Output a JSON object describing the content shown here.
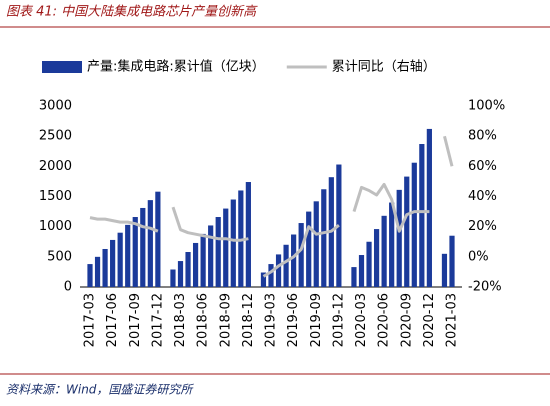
{
  "chart_data": {
    "type": "bar_line",
    "title": "图表 41:  中国大陆集成电路芯片产量创新高",
    "source": "资料来源：Wind，国盛证券研究所",
    "categories": [
      "2017-03",
      null,
      null,
      "2017-06",
      null,
      null,
      "2017-09",
      null,
      null,
      "2017-12",
      null,
      null,
      "2018-03",
      null,
      null,
      "2018-06",
      null,
      null,
      "2018-09",
      null,
      null,
      "2018-12",
      null,
      null,
      "2019-03",
      null,
      null,
      "2019-06",
      null,
      null,
      "2019-09",
      null,
      null,
      "2019-12",
      null,
      null,
      "2020-03",
      null,
      null,
      "2020-06",
      null,
      null,
      "2020-09",
      null,
      null,
      "2020-12",
      null,
      null,
      "2021-03"
    ],
    "series": [
      {
        "name": "产量:集成电路:累计值（亿块）",
        "type": "bar",
        "color": "#1b3a9a",
        "values": [
          380,
          500,
          630,
          780,
          900,
          1030,
          1160,
          1310,
          1440,
          1580,
          null,
          290,
          430,
          580,
          730,
          880,
          1020,
          1160,
          1300,
          1450,
          1600,
          1740,
          null,
          240,
          380,
          540,
          700,
          870,
          1060,
          1250,
          1420,
          1620,
          1820,
          2030,
          null,
          330,
          530,
          750,
          960,
          1180,
          1400,
          1610,
          1830,
          2060,
          2370,
          2620,
          null,
          550,
          850
        ]
      },
      {
        "name": "累计同比（右轴）",
        "type": "line",
        "axis": "y2",
        "color": "#bfbfbf",
        "values": [
          26,
          25,
          25,
          24,
          23,
          23,
          22,
          20,
          19,
          17,
          null,
          33,
          18,
          16,
          15,
          14,
          13,
          12,
          12,
          11,
          11,
          12,
          null,
          -13,
          -10,
          -6,
          -3,
          0,
          5,
          20,
          15,
          16,
          17,
          21,
          null,
          30,
          46,
          44,
          41,
          48,
          38,
          17,
          28,
          30,
          30,
          30,
          null,
          80,
          60
        ]
      }
    ],
    "ylim": [
      0,
      3000
    ],
    "yticks": [
      0,
      500,
      1000,
      1500,
      2000,
      2500,
      3000
    ],
    "y2lim": [
      -20,
      100
    ],
    "y2ticks": [
      {
        "value": -20,
        "label": "-20%"
      },
      {
        "value": 0,
        "label": "0%"
      },
      {
        "value": 20,
        "label": "20%"
      },
      {
        "value": 40,
        "label": "40%"
      },
      {
        "value": 60,
        "label": "60%"
      },
      {
        "value": 80,
        "label": "80%"
      },
      {
        "value": 100,
        "label": "100%"
      }
    ],
    "legend": "top"
  }
}
